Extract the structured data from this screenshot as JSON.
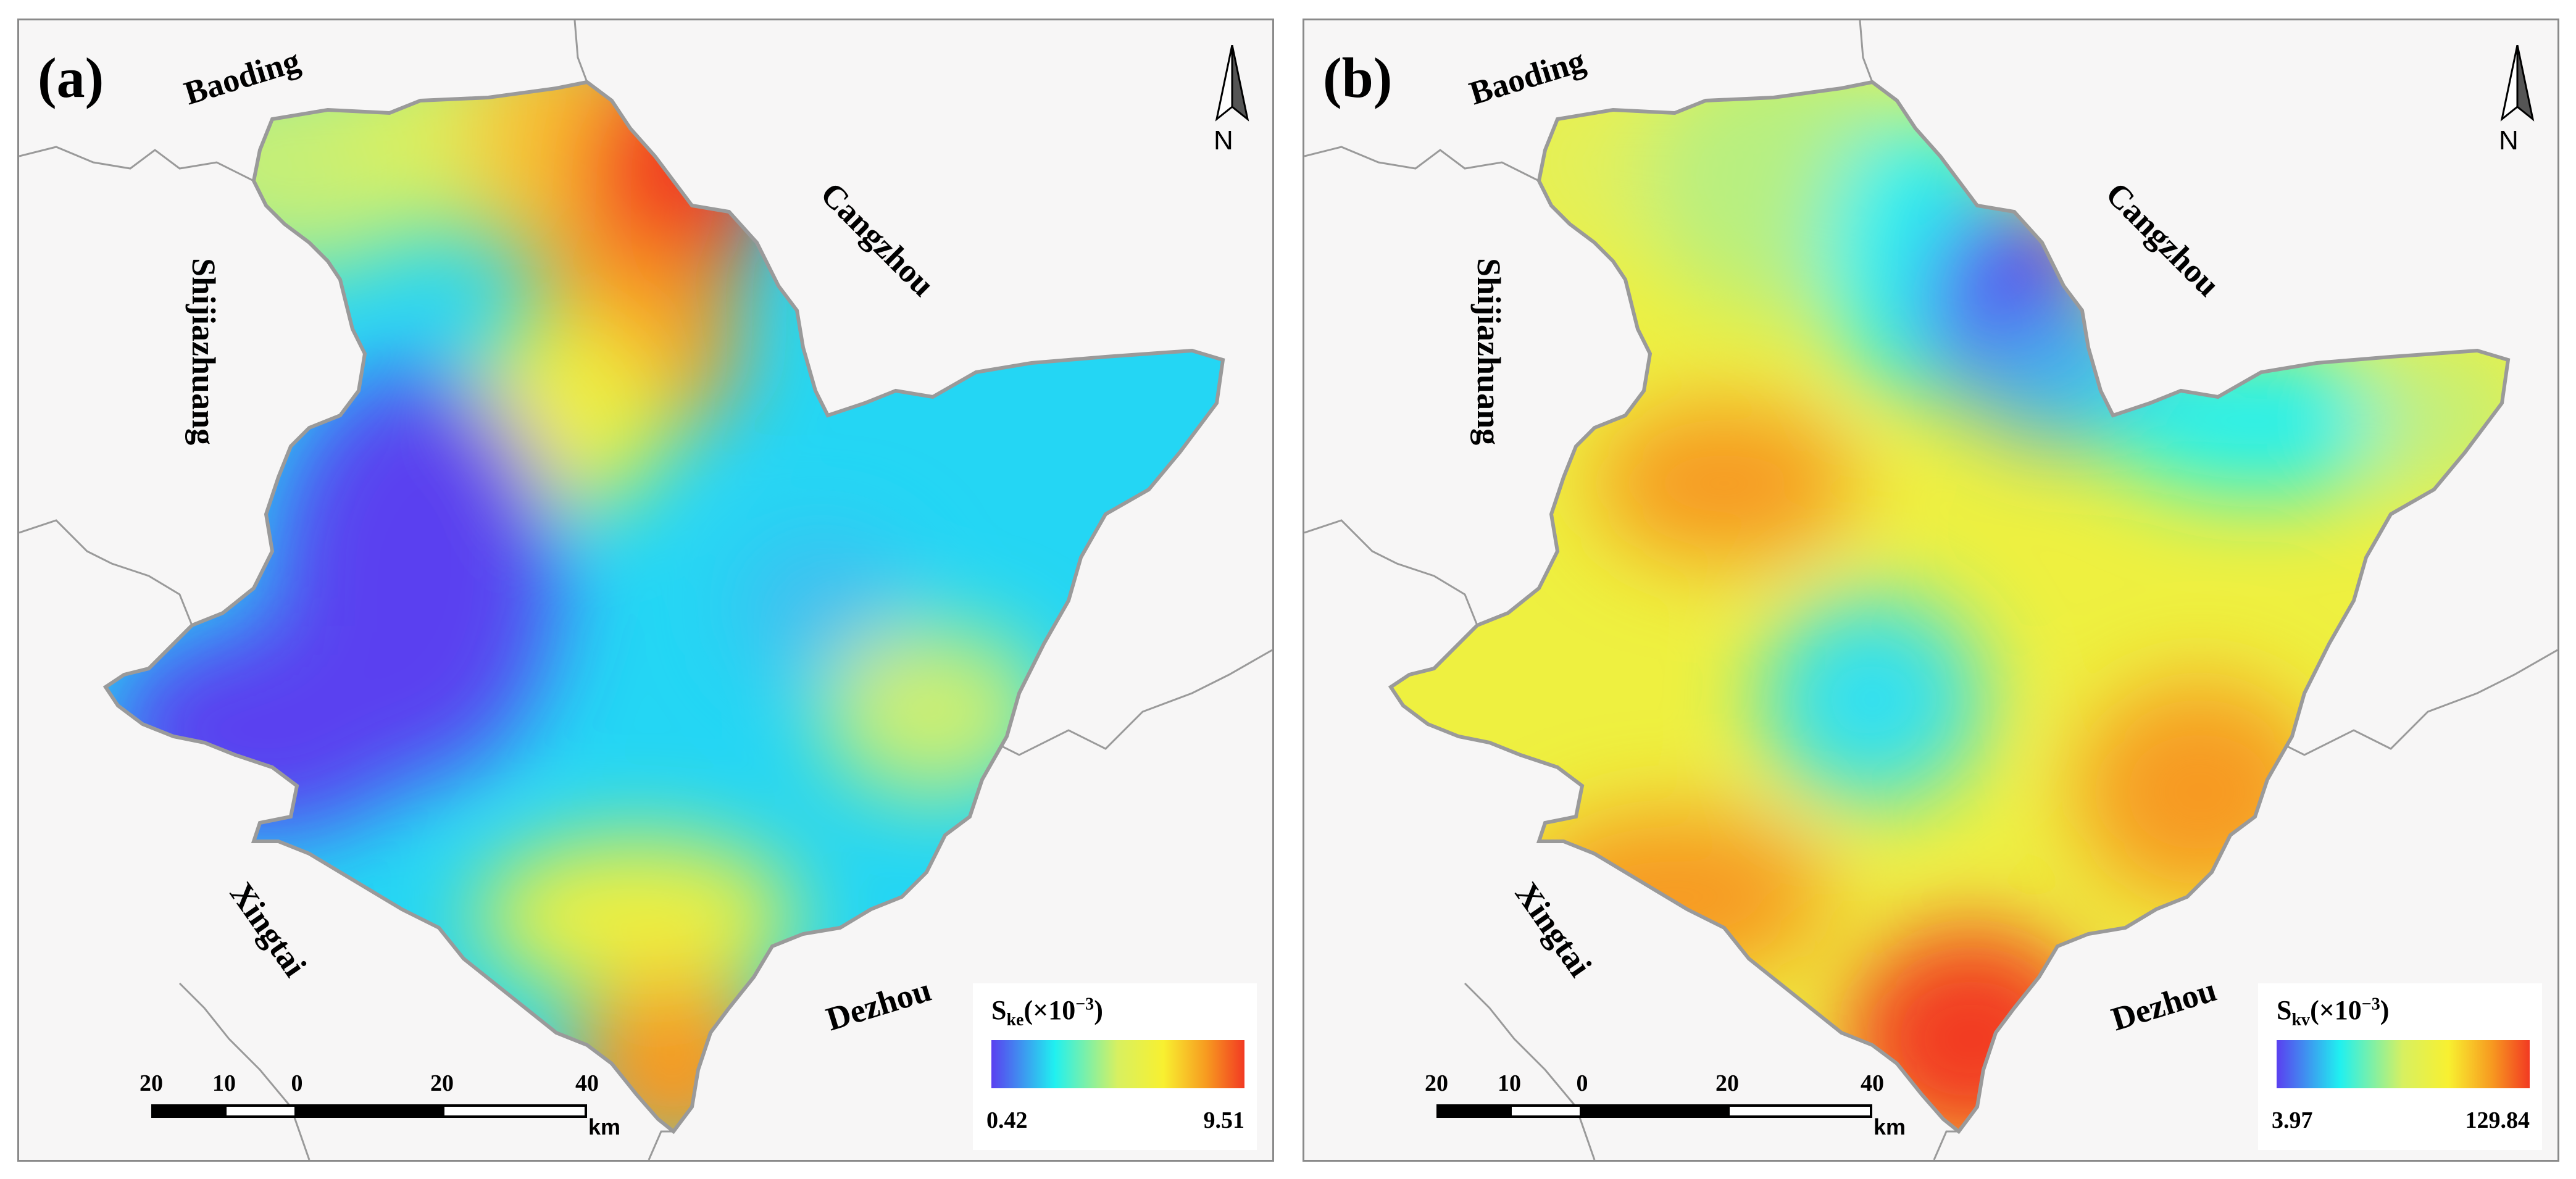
{
  "panels": [
    {
      "label": "(a)",
      "cities": {
        "baoding": "Baoding",
        "shijiazhuang": "Shijiazhuang",
        "cangzhou": "Cangzhou",
        "xingtai": "Xingtai",
        "dezhou": "Dezhou"
      },
      "north_label": "N",
      "legend": {
        "title_main": "S",
        "title_sub": "ke",
        "title_paren_open": "(×10",
        "title_sup": "−3",
        "title_paren_close": ")",
        "min": "0.42",
        "max": "9.51"
      },
      "scalebar": {
        "ticks": [
          "20",
          "10",
          "0",
          "20",
          "40"
        ],
        "unit": "km"
      }
    },
    {
      "label": "(b)",
      "cities": {
        "baoding": "Baoding",
        "shijiazhuang": "Shijiazhuang",
        "cangzhou": "Cangzhou",
        "xingtai": "Xingtai",
        "dezhou": "Dezhou"
      },
      "north_label": "N",
      "legend": {
        "title_main": "S",
        "title_sub": "kv",
        "title_paren_open": "(×10",
        "title_sup": "−3",
        "title_paren_close": ")",
        "min": "3.97",
        "max": "129.84"
      },
      "scalebar": {
        "ticks": [
          "20",
          "10",
          "0",
          "20",
          "40"
        ],
        "unit": "km"
      }
    }
  ],
  "colors": {
    "background": "#f7f6f6",
    "border": "#8a8a8a",
    "ramp": [
      "#5a3ff0",
      "#20f0f0",
      "#d8f060",
      "#f8f030",
      "#f79a20",
      "#f23a22"
    ]
  }
}
